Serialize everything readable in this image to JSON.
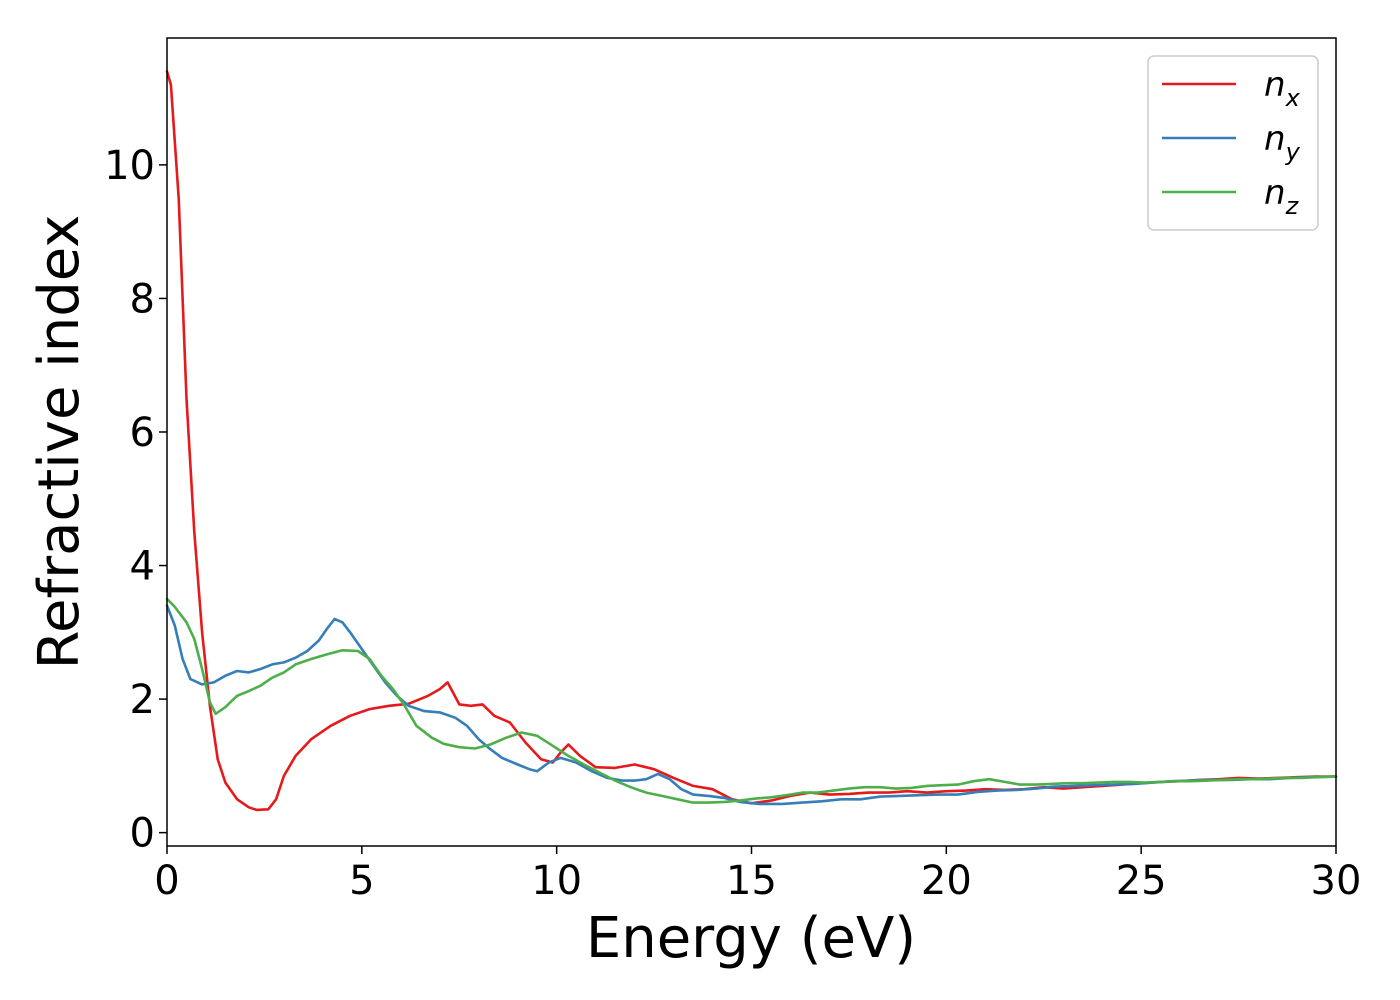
{
  "chart_data": {
    "type": "line",
    "title": "",
    "xlabel": "Energy (eV)",
    "ylabel": "Refractive index",
    "xlim": [
      0,
      30
    ],
    "ylim": [
      -0.2,
      11.9
    ],
    "xticks": [
      0,
      5,
      10,
      15,
      20,
      25,
      30
    ],
    "yticks": [
      0,
      2,
      4,
      6,
      8,
      10
    ],
    "grid": false,
    "legend_position": "top-right",
    "series": [
      {
        "name": "n",
        "subscript": "x",
        "color": "#e41a1c",
        "points": [
          [
            0,
            11.4
          ],
          [
            0.1,
            11.2
          ],
          [
            0.3,
            9.5
          ],
          [
            0.5,
            6.5
          ],
          [
            0.7,
            4.5
          ],
          [
            0.9,
            3.0
          ],
          [
            1.1,
            1.9
          ],
          [
            1.3,
            1.1
          ],
          [
            1.5,
            0.75
          ],
          [
            1.8,
            0.5
          ],
          [
            2.1,
            0.38
          ],
          [
            2.3,
            0.34
          ],
          [
            2.6,
            0.35
          ],
          [
            2.8,
            0.5
          ],
          [
            3.0,
            0.85
          ],
          [
            3.3,
            1.15
          ],
          [
            3.7,
            1.4
          ],
          [
            4.2,
            1.6
          ],
          [
            4.7,
            1.75
          ],
          [
            5.2,
            1.85
          ],
          [
            5.7,
            1.9
          ],
          [
            6.2,
            1.93
          ],
          [
            6.7,
            2.05
          ],
          [
            7.0,
            2.15
          ],
          [
            7.2,
            2.25
          ],
          [
            7.5,
            1.92
          ],
          [
            7.8,
            1.9
          ],
          [
            8.1,
            1.92
          ],
          [
            8.4,
            1.75
          ],
          [
            8.8,
            1.65
          ],
          [
            9.2,
            1.35
          ],
          [
            9.6,
            1.1
          ],
          [
            9.9,
            1.05
          ],
          [
            10.1,
            1.2
          ],
          [
            10.3,
            1.32
          ],
          [
            10.6,
            1.15
          ],
          [
            11.0,
            0.98
          ],
          [
            11.5,
            0.97
          ],
          [
            12.0,
            1.02
          ],
          [
            12.5,
            0.95
          ],
          [
            13.0,
            0.82
          ],
          [
            13.5,
            0.7
          ],
          [
            14.0,
            0.65
          ],
          [
            14.5,
            0.5
          ],
          [
            15.0,
            0.44
          ],
          [
            15.5,
            0.48
          ],
          [
            16.0,
            0.55
          ],
          [
            16.5,
            0.6
          ],
          [
            17.0,
            0.57
          ],
          [
            17.5,
            0.58
          ],
          [
            18.0,
            0.6
          ],
          [
            18.5,
            0.6
          ],
          [
            19.0,
            0.62
          ],
          [
            19.5,
            0.6
          ],
          [
            20.0,
            0.62
          ],
          [
            20.5,
            0.63
          ],
          [
            21.0,
            0.65
          ],
          [
            21.5,
            0.64
          ],
          [
            22.0,
            0.65
          ],
          [
            22.5,
            0.68
          ],
          [
            23.0,
            0.66
          ],
          [
            23.5,
            0.68
          ],
          [
            24.0,
            0.7
          ],
          [
            24.5,
            0.72
          ],
          [
            25.0,
            0.74
          ],
          [
            25.5,
            0.76
          ],
          [
            26.0,
            0.77
          ],
          [
            26.5,
            0.79
          ],
          [
            27.0,
            0.8
          ],
          [
            27.5,
            0.82
          ],
          [
            28.0,
            0.81
          ],
          [
            28.5,
            0.82
          ],
          [
            29.0,
            0.83
          ],
          [
            29.5,
            0.84
          ],
          [
            30.0,
            0.84
          ]
        ]
      },
      {
        "name": "n",
        "subscript": "y",
        "color": "#377eb8",
        "points": [
          [
            0,
            3.4
          ],
          [
            0.2,
            3.1
          ],
          [
            0.4,
            2.6
          ],
          [
            0.6,
            2.3
          ],
          [
            0.9,
            2.22
          ],
          [
            1.2,
            2.25
          ],
          [
            1.5,
            2.35
          ],
          [
            1.8,
            2.42
          ],
          [
            2.1,
            2.4
          ],
          [
            2.4,
            2.45
          ],
          [
            2.7,
            2.52
          ],
          [
            3.0,
            2.55
          ],
          [
            3.3,
            2.62
          ],
          [
            3.6,
            2.72
          ],
          [
            3.9,
            2.88
          ],
          [
            4.1,
            3.05
          ],
          [
            4.3,
            3.2
          ],
          [
            4.5,
            3.15
          ],
          [
            4.7,
            3.0
          ],
          [
            5.0,
            2.75
          ],
          [
            5.3,
            2.5
          ],
          [
            5.6,
            2.25
          ],
          [
            5.9,
            2.05
          ],
          [
            6.2,
            1.9
          ],
          [
            6.6,
            1.82
          ],
          [
            7.0,
            1.8
          ],
          [
            7.4,
            1.72
          ],
          [
            7.7,
            1.6
          ],
          [
            8.0,
            1.4
          ],
          [
            8.3,
            1.25
          ],
          [
            8.6,
            1.12
          ],
          [
            9.0,
            1.02
          ],
          [
            9.3,
            0.95
          ],
          [
            9.5,
            0.92
          ],
          [
            9.8,
            1.05
          ],
          [
            10.1,
            1.12
          ],
          [
            10.5,
            1.05
          ],
          [
            10.9,
            0.92
          ],
          [
            11.3,
            0.82
          ],
          [
            11.7,
            0.78
          ],
          [
            12.0,
            0.78
          ],
          [
            12.3,
            0.8
          ],
          [
            12.6,
            0.88
          ],
          [
            12.9,
            0.8
          ],
          [
            13.2,
            0.65
          ],
          [
            13.5,
            0.57
          ],
          [
            13.9,
            0.55
          ],
          [
            14.3,
            0.52
          ],
          [
            14.7,
            0.46
          ],
          [
            15.2,
            0.43
          ],
          [
            15.8,
            0.43
          ],
          [
            16.3,
            0.45
          ],
          [
            16.8,
            0.47
          ],
          [
            17.3,
            0.5
          ],
          [
            17.8,
            0.5
          ],
          [
            18.3,
            0.54
          ],
          [
            18.8,
            0.55
          ],
          [
            19.3,
            0.56
          ],
          [
            19.8,
            0.57
          ],
          [
            20.3,
            0.57
          ],
          [
            20.8,
            0.61
          ],
          [
            21.3,
            0.63
          ],
          [
            21.8,
            0.64
          ],
          [
            22.3,
            0.66
          ],
          [
            22.8,
            0.69
          ],
          [
            23.3,
            0.7
          ],
          [
            23.8,
            0.71
          ],
          [
            24.3,
            0.72
          ],
          [
            24.8,
            0.73
          ],
          [
            25.3,
            0.75
          ],
          [
            25.8,
            0.77
          ],
          [
            26.3,
            0.78
          ],
          [
            26.8,
            0.79
          ],
          [
            27.3,
            0.79
          ],
          [
            27.8,
            0.8
          ],
          [
            28.3,
            0.8
          ],
          [
            28.8,
            0.82
          ],
          [
            29.3,
            0.83
          ],
          [
            30.0,
            0.84
          ]
        ]
      },
      {
        "name": "n",
        "subscript": "z",
        "color": "#4daf4a",
        "points": [
          [
            0,
            3.5
          ],
          [
            0.2,
            3.38
          ],
          [
            0.5,
            3.15
          ],
          [
            0.7,
            2.9
          ],
          [
            0.9,
            2.45
          ],
          [
            1.1,
            1.95
          ],
          [
            1.25,
            1.78
          ],
          [
            1.5,
            1.88
          ],
          [
            1.8,
            2.05
          ],
          [
            2.1,
            2.12
          ],
          [
            2.4,
            2.2
          ],
          [
            2.7,
            2.32
          ],
          [
            3.0,
            2.4
          ],
          [
            3.3,
            2.52
          ],
          [
            3.7,
            2.6
          ],
          [
            4.1,
            2.67
          ],
          [
            4.5,
            2.73
          ],
          [
            4.9,
            2.72
          ],
          [
            5.2,
            2.6
          ],
          [
            5.5,
            2.35
          ],
          [
            5.8,
            2.15
          ],
          [
            6.1,
            1.9
          ],
          [
            6.4,
            1.6
          ],
          [
            6.8,
            1.42
          ],
          [
            7.1,
            1.33
          ],
          [
            7.5,
            1.28
          ],
          [
            7.9,
            1.26
          ],
          [
            8.3,
            1.32
          ],
          [
            8.7,
            1.42
          ],
          [
            9.1,
            1.5
          ],
          [
            9.5,
            1.45
          ],
          [
            9.9,
            1.3
          ],
          [
            10.3,
            1.15
          ],
          [
            10.7,
            1.02
          ],
          [
            11.1,
            0.9
          ],
          [
            11.5,
            0.78
          ],
          [
            11.9,
            0.68
          ],
          [
            12.3,
            0.6
          ],
          [
            12.7,
            0.55
          ],
          [
            13.1,
            0.5
          ],
          [
            13.5,
            0.45
          ],
          [
            13.9,
            0.45
          ],
          [
            14.3,
            0.46
          ],
          [
            14.7,
            0.48
          ],
          [
            15.1,
            0.51
          ],
          [
            15.5,
            0.53
          ],
          [
            15.9,
            0.56
          ],
          [
            16.3,
            0.6
          ],
          [
            16.7,
            0.6
          ],
          [
            17.1,
            0.63
          ],
          [
            17.5,
            0.66
          ],
          [
            17.9,
            0.68
          ],
          [
            18.3,
            0.68
          ],
          [
            18.7,
            0.66
          ],
          [
            19.1,
            0.67
          ],
          [
            19.5,
            0.7
          ],
          [
            19.9,
            0.71
          ],
          [
            20.3,
            0.72
          ],
          [
            20.7,
            0.77
          ],
          [
            21.1,
            0.8
          ],
          [
            21.5,
            0.76
          ],
          [
            21.9,
            0.72
          ],
          [
            22.3,
            0.72
          ],
          [
            22.7,
            0.73
          ],
          [
            23.1,
            0.74
          ],
          [
            23.5,
            0.74
          ],
          [
            23.9,
            0.75
          ],
          [
            24.3,
            0.76
          ],
          [
            24.7,
            0.76
          ],
          [
            25.1,
            0.75
          ],
          [
            25.5,
            0.76
          ],
          [
            25.9,
            0.77
          ],
          [
            26.3,
            0.77
          ],
          [
            26.7,
            0.78
          ],
          [
            27.1,
            0.79
          ],
          [
            27.5,
            0.8
          ],
          [
            27.9,
            0.8
          ],
          [
            28.3,
            0.81
          ],
          [
            28.7,
            0.82
          ],
          [
            29.1,
            0.82
          ],
          [
            29.5,
            0.83
          ],
          [
            30.0,
            0.84
          ]
        ]
      }
    ]
  }
}
